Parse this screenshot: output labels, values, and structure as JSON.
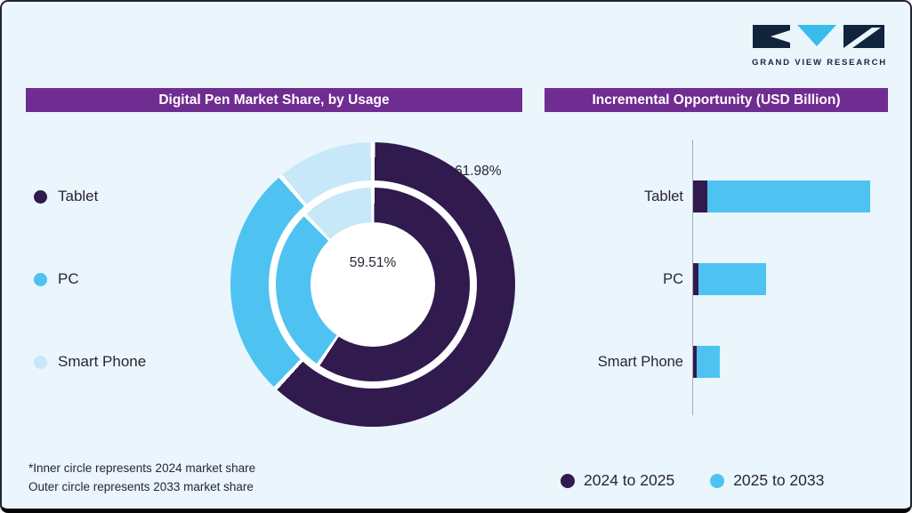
{
  "brand": {
    "name": "GRAND VIEW RESEARCH"
  },
  "colors": {
    "page_bg": "#eaf5fc",
    "header_bg": "#6f2c91",
    "dark_purple": "#311a4d",
    "blue": "#4ec3f1",
    "pale_blue": "#c7e8f8",
    "logo_navy": "#10243c",
    "logo_cyan": "#38bdea"
  },
  "left_panel": {
    "title": "Digital Pen Market Share, by Usage",
    "legend": [
      {
        "label": "Tablet",
        "color_key": "dark_purple"
      },
      {
        "label": "PC",
        "color_key": "blue"
      },
      {
        "label": "Smart Phone",
        "color_key": "pale_blue"
      }
    ],
    "center_label": "59.51%",
    "outer_label": "61.98%",
    "footnote_line1": "*Inner circle represents 2024 market share",
    "footnote_line2": "Outer circle represents 2033 market share"
  },
  "right_panel": {
    "title": "Incremental Opportunity (USD Billion)",
    "legend": [
      {
        "label": "2024 to 2025",
        "color_key": "dark_purple"
      },
      {
        "label": "2025 to 2033",
        "color_key": "blue"
      }
    ]
  },
  "chart_data": [
    {
      "type": "pie",
      "variant": "double-donut",
      "title": "Digital Pen Market Share, by Usage",
      "segment_labels": [
        "Tablet",
        "PC",
        "Smart Phone"
      ],
      "segment_color_keys": [
        "dark_purple",
        "blue",
        "pale_blue"
      ],
      "rings": [
        {
          "name": "2033 market share (outer circle)",
          "values": [
            61.98,
            26.8,
            11.22
          ],
          "labeled_value": 61.98,
          "labeled_segment": "Tablet"
        },
        {
          "name": "2024 market share (inner circle)",
          "values": [
            59.51,
            28.2,
            12.29
          ],
          "labeled_value": 59.51,
          "labeled_segment": "Tablet"
        }
      ],
      "unlabeled_values_estimated": true
    },
    {
      "type": "bar",
      "orientation": "horizontal",
      "title": "Incremental Opportunity (USD Billion)",
      "categories": [
        "Tablet",
        "PC",
        "Smart Phone"
      ],
      "series": [
        {
          "name": "2024 to 2025",
          "color_key": "dark_purple",
          "values": [
            0.4,
            0.15,
            0.1
          ]
        },
        {
          "name": "2025 to 2033",
          "color_key": "blue",
          "values": [
            4.6,
            1.9,
            0.65
          ]
        }
      ],
      "value_axis_max": 5.0,
      "values_estimated": true
    }
  ]
}
